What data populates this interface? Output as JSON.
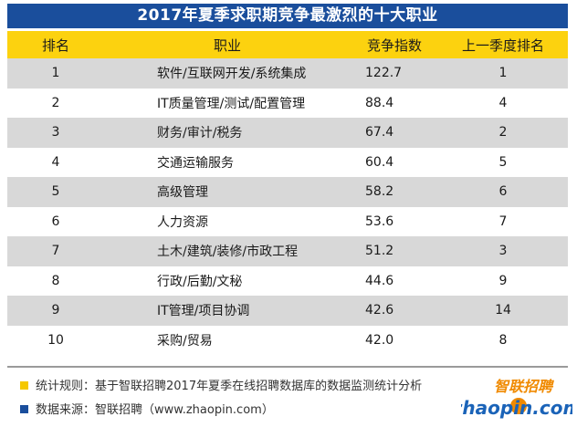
{
  "title": "2017年夏季求职期竞争最激烈的十大职业",
  "headers": [
    "排名",
    "职业",
    "竞争指数",
    "上一季度排名"
  ],
  "chart_data": {
    "type": "table",
    "title": "2017年夏季求职期竞争最激烈的十大职业",
    "columns": [
      "排名",
      "职业",
      "竞争指数",
      "上一季度排名"
    ],
    "rows": [
      {
        "rank": "1",
        "job": "软件/互联网开发/系统集成",
        "index": "122.7",
        "prev": "1"
      },
      {
        "rank": "2",
        "job": "IT质量管理/测试/配置管理",
        "index": "88.4",
        "prev": "4"
      },
      {
        "rank": "3",
        "job": "财务/审计/税务",
        "index": "67.4",
        "prev": "2"
      },
      {
        "rank": "4",
        "job": "交通运输服务",
        "index": "60.4",
        "prev": "5"
      },
      {
        "rank": "5",
        "job": "高级管理",
        "index": "58.2",
        "prev": "6"
      },
      {
        "rank": "6",
        "job": "人力资源",
        "index": "53.6",
        "prev": "7"
      },
      {
        "rank": "7",
        "job": "土木/建筑/装修/市政工程",
        "index": "51.2",
        "prev": "3"
      },
      {
        "rank": "8",
        "job": "行政/后勤/文秘",
        "index": "44.6",
        "prev": "9"
      },
      {
        "rank": "9",
        "job": "IT管理/项目协调",
        "index": "42.6",
        "prev": "14"
      },
      {
        "rank": "10",
        "job": "采购/贸易",
        "index": "42.0",
        "prev": "8"
      }
    ]
  },
  "notes": {
    "rule": "统计规则：基于智联招聘2017年夏季在线招聘数据库的数据监测统计分析",
    "source": "数据来源：智联招聘（www.zhaopin.com）"
  },
  "logo": {
    "cn_text": "智联招聘",
    "en_text": "zhaopin.com"
  },
  "colors": {
    "title_bg": "#1a4e9c",
    "header_bg": "#fcd20f",
    "row_gray": "#d8d8d8",
    "note1_square": "#f5c800",
    "note2_square": "#1a4e9c",
    "logo_blue": "#1a63b8",
    "logo_orange": "#f08a00"
  }
}
